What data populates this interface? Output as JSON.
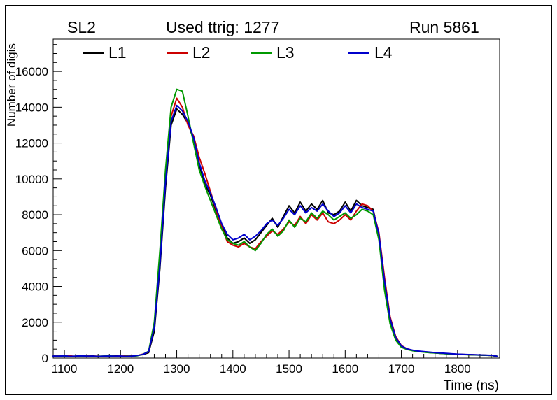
{
  "header": {
    "left": "SL2",
    "center": "Used ttrig: 1277",
    "right": "Run 5861"
  },
  "axes": {
    "x_title": "Time (ns)",
    "y_title": "Number of digis"
  },
  "legend": {
    "items": [
      {
        "label": "L1",
        "color": "#000000"
      },
      {
        "label": "L2",
        "color": "#cc0000"
      },
      {
        "label": "L3",
        "color": "#009900"
      },
      {
        "label": "L4",
        "color": "#0000cc"
      }
    ]
  },
  "chart_data": {
    "type": "line",
    "title": "Used ttrig: 1277",
    "xlabel": "Time (ns)",
    "ylabel": "Number of digis",
    "xlim": [
      1080,
      1875
    ],
    "ylim": [
      0,
      17800
    ],
    "xticks": [
      1100,
      1200,
      1300,
      1400,
      1500,
      1600,
      1700,
      1800
    ],
    "yticks": [
      0,
      2000,
      4000,
      6000,
      8000,
      10000,
      12000,
      14000,
      16000
    ],
    "x_minor_step": 20,
    "y_minor_step": 500,
    "grid": false,
    "legend_position": "top-inside",
    "x": [
      1080,
      1090,
      1100,
      1110,
      1120,
      1130,
      1140,
      1150,
      1160,
      1170,
      1180,
      1190,
      1200,
      1210,
      1220,
      1230,
      1240,
      1250,
      1260,
      1270,
      1280,
      1290,
      1300,
      1310,
      1320,
      1330,
      1340,
      1350,
      1360,
      1370,
      1380,
      1390,
      1400,
      1410,
      1420,
      1430,
      1440,
      1450,
      1460,
      1470,
      1480,
      1490,
      1500,
      1510,
      1520,
      1530,
      1540,
      1550,
      1560,
      1570,
      1580,
      1590,
      1600,
      1610,
      1620,
      1630,
      1640,
      1650,
      1660,
      1670,
      1680,
      1690,
      1700,
      1710,
      1720,
      1730,
      1740,
      1750,
      1760,
      1770,
      1780,
      1790,
      1800,
      1810,
      1820,
      1830,
      1840,
      1850,
      1860,
      1870
    ],
    "series": [
      {
        "name": "L1",
        "color": "#000000",
        "values": [
          120,
          100,
          140,
          90,
          110,
          130,
          100,
          120,
          90,
          110,
          100,
          130,
          110,
          90,
          120,
          150,
          200,
          300,
          1500,
          5000,
          9500,
          13000,
          13900,
          13600,
          13100,
          12200,
          10800,
          9700,
          9100,
          8200,
          7400,
          6700,
          6400,
          6500,
          6700,
          6400,
          6600,
          7000,
          7400,
          7800,
          7300,
          7900,
          8500,
          8100,
          8700,
          8200,
          8600,
          8300,
          8800,
          8100,
          8000,
          8200,
          8700,
          8200,
          8800,
          8500,
          8400,
          8300,
          6800,
          4200,
          2100,
          1100,
          650,
          500,
          420,
          380,
          340,
          310,
          290,
          260,
          250,
          230,
          210,
          200,
          190,
          180,
          170,
          160,
          150,
          100
        ]
      },
      {
        "name": "L2",
        "color": "#cc0000",
        "values": [
          110,
          120,
          100,
          130,
          90,
          110,
          120,
          100,
          110,
          90,
          120,
          100,
          110,
          120,
          100,
          140,
          220,
          350,
          1800,
          5500,
          10000,
          13500,
          14500,
          14000,
          13000,
          12400,
          11200,
          10300,
          9300,
          8300,
          7300,
          6500,
          6300,
          6200,
          6400,
          6200,
          6100,
          6500,
          6800,
          7100,
          6900,
          7200,
          7600,
          7400,
          7900,
          7500,
          8000,
          7700,
          8100,
          7600,
          7500,
          7700,
          8000,
          7700,
          8200,
          8600,
          8500,
          8200,
          7000,
          4500,
          2300,
          1200,
          700,
          520,
          430,
          380,
          350,
          320,
          290,
          270,
          250,
          230,
          210,
          200,
          190,
          180,
          170,
          160,
          150,
          110
        ]
      },
      {
        "name": "L3",
        "color": "#009900",
        "values": [
          100,
          110,
          120,
          90,
          100,
          120,
          110,
          90,
          100,
          110,
          120,
          100,
          90,
          110,
          100,
          130,
          210,
          380,
          2000,
          6000,
          10500,
          14000,
          15000,
          14900,
          13500,
          12000,
          10500,
          9600,
          8800,
          8000,
          7200,
          6600,
          6400,
          6300,
          6500,
          6200,
          6000,
          6400,
          6900,
          7200,
          6800,
          7100,
          7700,
          7300,
          7800,
          7600,
          8100,
          7800,
          8200,
          8000,
          7700,
          7900,
          8100,
          7800,
          8000,
          8300,
          8200,
          8000,
          6600,
          3800,
          1900,
          1000,
          600,
          480,
          410,
          360,
          330,
          300,
          280,
          260,
          240,
          220,
          210,
          195,
          185,
          175,
          165,
          155,
          145,
          105
        ]
      },
      {
        "name": "L4",
        "color": "#0000cc",
        "values": [
          115,
          105,
          125,
          95,
          105,
          125,
          105,
          115,
          95,
          105,
          115,
          105,
          115,
          95,
          105,
          145,
          205,
          360,
          1700,
          5200,
          9800,
          13200,
          14100,
          13800,
          13200,
          12300,
          10900,
          9900,
          9200,
          8400,
          7500,
          6900,
          6600,
          6700,
          6900,
          6600,
          6800,
          7100,
          7500,
          7700,
          7400,
          7800,
          8300,
          8000,
          8500,
          8100,
          8400,
          8200,
          8600,
          8200,
          7900,
          8100,
          8500,
          8100,
          8600,
          8400,
          8300,
          8200,
          6900,
          4300,
          2200,
          1150,
          680,
          510,
          440,
          390,
          360,
          330,
          300,
          280,
          260,
          240,
          220,
          205,
          195,
          185,
          175,
          165,
          155,
          105
        ]
      }
    ]
  }
}
